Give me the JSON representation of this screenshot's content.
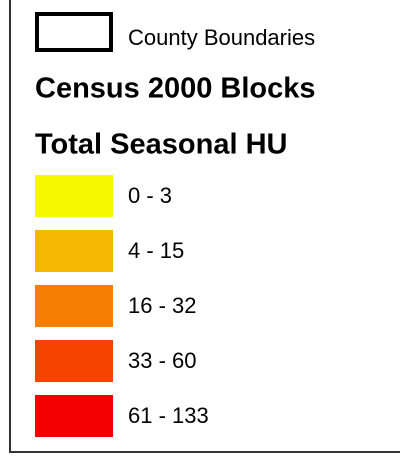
{
  "legend": {
    "boundary_label": "County Boundaries",
    "title": "Census 2000 Blocks",
    "subtitle": "Total Seasonal HU",
    "classes": [
      {
        "label": "0 - 3",
        "color": "#f7f700"
      },
      {
        "label": "4 - 15",
        "color": "#f5b800"
      },
      {
        "label": "16 - 32",
        "color": "#f57d00"
      },
      {
        "label": "33 - 60",
        "color": "#f54400"
      },
      {
        "label": "61 - 133",
        "color": "#f50000"
      }
    ]
  }
}
